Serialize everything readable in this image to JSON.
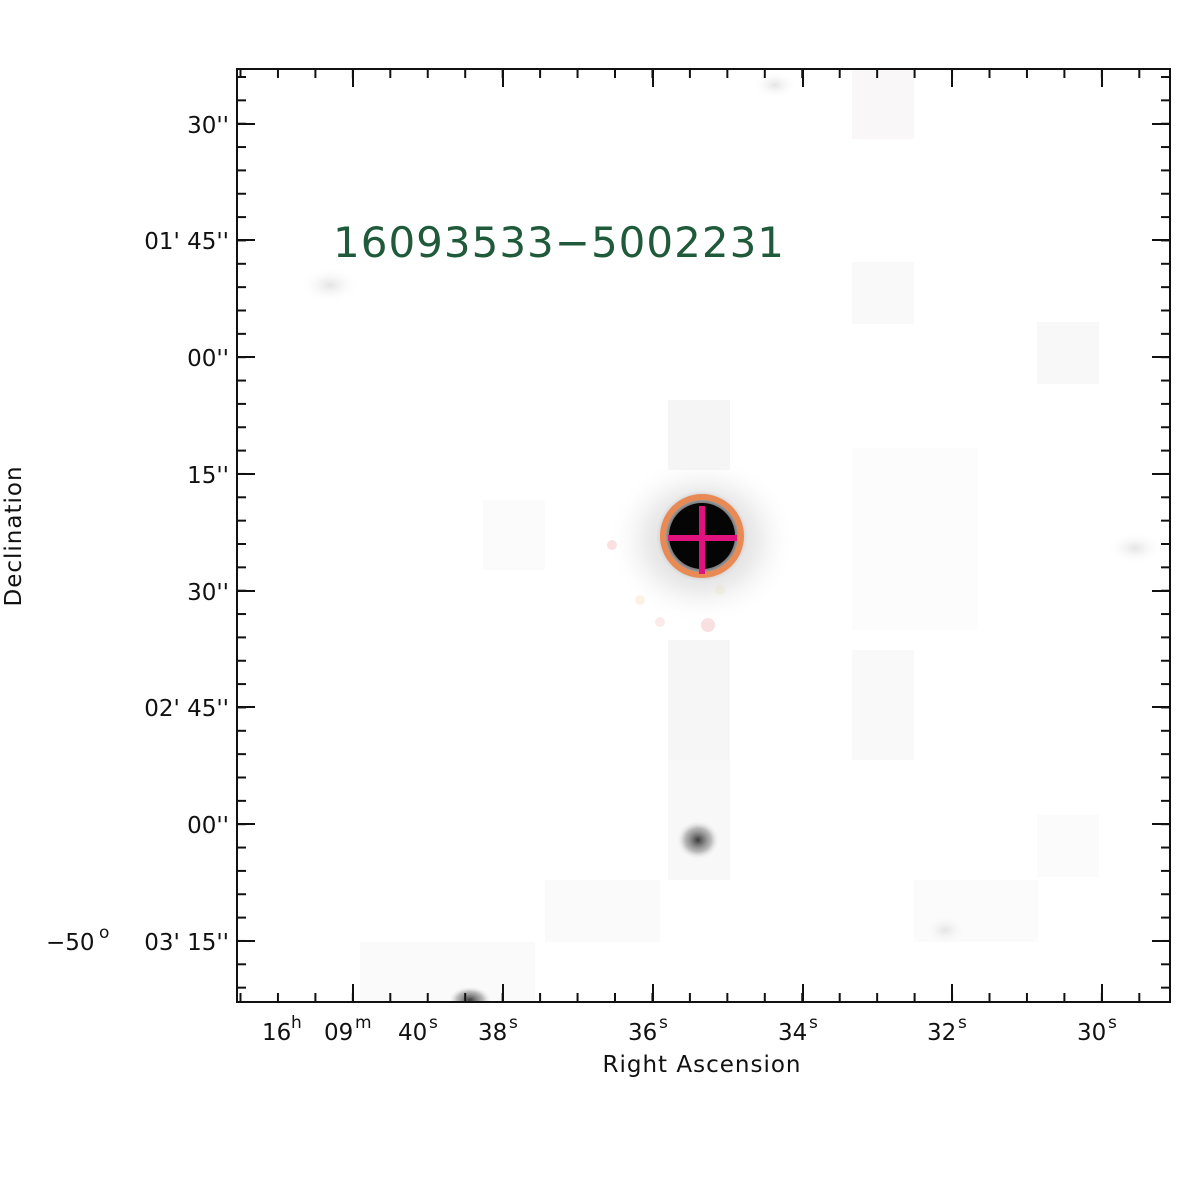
{
  "source_label": "16093533−5002231",
  "colors": {
    "source_label": "#1f5a3a",
    "aperture_circle": "#e98a55",
    "marker_cross": "#e0127e",
    "frame": "#111111"
  },
  "axes": {
    "x_title": "Right Ascension",
    "y_title": "Declination"
  },
  "ra_ticks": [
    {
      "h": "16",
      "h_unit": "h",
      "m": "09",
      "m_unit": "m",
      "s": "40",
      "s_unit": "s"
    },
    {
      "s": "38",
      "s_unit": "s"
    },
    {
      "s": "36",
      "s_unit": "s"
    },
    {
      "s": "34",
      "s_unit": "s"
    },
    {
      "s": "32",
      "s_unit": "s"
    },
    {
      "s": "30",
      "s_unit": "s"
    }
  ],
  "dec_ticks": [
    {
      "text": "30''"
    },
    {
      "text": "01' 45''"
    },
    {
      "text": "00''"
    },
    {
      "text": "15''"
    },
    {
      "text": "30''"
    },
    {
      "text": "02' 45''"
    },
    {
      "text": "00''"
    },
    {
      "deg": "−50",
      "deg_unit": "o",
      "rest": "03' 15''"
    }
  ],
  "markers": {
    "aperture": "circle",
    "center": "cross"
  }
}
